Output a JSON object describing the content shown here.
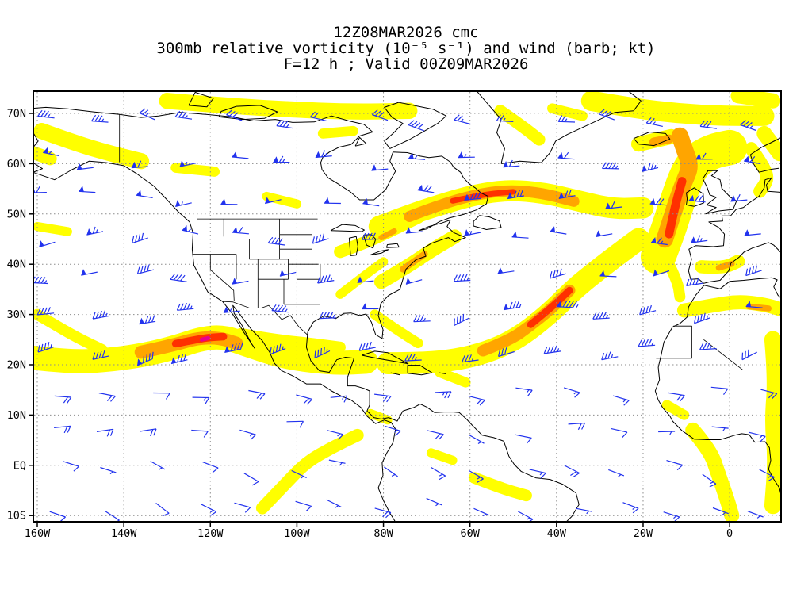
{
  "header": {
    "line1": "12Z08MAR2026 cmc",
    "line2": "300mb relative vorticity (10⁻⁵ s⁻¹) and wind (barb; kt)",
    "line3": "F=12 h ; Valid 00Z09MAR2026"
  },
  "chart_data": {
    "type": "heatmap",
    "title": "300mb relative vorticity (10⁻⁵ s⁻¹) and wind (barb; kt)",
    "model": "cmc",
    "init_time": "12Z08MAR2026",
    "forecast": "F=12 h",
    "valid_time": "00Z09MAR2026",
    "level": "300mb",
    "variable": "relative vorticity",
    "vorticity_units": "10⁻⁵ s⁻¹",
    "wind_units": "kt",
    "x_axis": {
      "labels": [
        "160W",
        "140W",
        "120W",
        "100W",
        "80W",
        "60W",
        "40W",
        "20W",
        "0"
      ],
      "degrees": [
        -160,
        -140,
        -120,
        -100,
        -80,
        -60,
        -40,
        -20,
        0
      ]
    },
    "y_axis": {
      "labels": [
        "70N",
        "60N",
        "50N",
        "40N",
        "30N",
        "20N",
        "10N",
        "EQ",
        "10S"
      ],
      "degrees": [
        70,
        60,
        50,
        40,
        30,
        20,
        10,
        0,
        -10
      ]
    },
    "domain": {
      "lon_min": -161,
      "lon_max": 12,
      "lat_min": -11.2,
      "lat_max": 74.5
    },
    "graticule": "dotted, 10 deg latitude x 20 deg longitude",
    "colors": {
      "shading": [
        "#FFFF00",
        "#FFA500",
        "#FF3000",
        "#E8008C"
      ],
      "barb": "#2233EE",
      "coast": "#000000",
      "grid": "#8C8C8C",
      "frame": "#000000"
    },
    "vorticity_features": [
      {
        "level": 1,
        "w": 4.8,
        "pts": [
          [
            -162,
            21.5
          ],
          [
            -152,
            20.5
          ],
          [
            -143,
            21
          ],
          [
            -135,
            22
          ],
          [
            -128,
            23.5
          ],
          [
            -122,
            25.2
          ],
          [
            -117,
            25.6
          ],
          [
            -111,
            23.8
          ],
          [
            -104,
            21.8
          ],
          [
            -97,
            20.8
          ],
          [
            -90,
            20.3
          ],
          [
            -84,
            20.6
          ]
        ]
      },
      {
        "level": 1,
        "w": 2.2,
        "pts": [
          [
            -160,
            30
          ],
          [
            -156,
            28
          ],
          [
            -151,
            25.5
          ],
          [
            -145,
            23
          ]
        ]
      },
      {
        "level": 1,
        "w": 2.2,
        "pts": [
          [
            -113,
            26.2
          ],
          [
            -105,
            25
          ],
          [
            -97,
            24.3
          ],
          [
            -90,
            23.5
          ]
        ]
      },
      {
        "level": 1,
        "w": 4.4,
        "pts": [
          [
            -79,
            20.3
          ],
          [
            -71,
            20.3
          ],
          [
            -63,
            21
          ],
          [
            -56,
            22.5
          ],
          [
            -50,
            24.8
          ],
          [
            -45,
            27.8
          ],
          [
            -40,
            31.5
          ],
          [
            -36,
            35
          ],
          [
            -31,
            38.5
          ],
          [
            -26,
            41.8
          ],
          [
            -21,
            45
          ]
        ]
      },
      {
        "level": 1,
        "w": 2.0,
        "pts": [
          [
            -82,
            30
          ],
          [
            -77,
            27
          ],
          [
            -72,
            24.3
          ]
        ]
      },
      {
        "level": 1,
        "w": 4.2,
        "pts": [
          [
            -81,
            47.5
          ],
          [
            -74,
            49.8
          ],
          [
            -67,
            51.8
          ],
          [
            -59,
            53.8
          ],
          [
            -51,
            54.8
          ],
          [
            -43,
            54.2
          ],
          [
            -35,
            52.6
          ],
          [
            -27,
            51
          ],
          [
            -20,
            51.2
          ]
        ]
      },
      {
        "level": 1,
        "w": 7.0,
        "pts": [
          [
            -16.5,
            41.5
          ],
          [
            -14.5,
            46
          ],
          [
            -13,
            50
          ],
          [
            -11.5,
            54
          ],
          [
            -10,
            57.5
          ],
          [
            -8,
            60.5
          ],
          [
            -4,
            62.5
          ],
          [
            0,
            63.2
          ]
        ]
      },
      {
        "level": 1,
        "w": 2.8,
        "pts": [
          [
            -80.5,
            36.5
          ],
          [
            -74.5,
            39.5
          ],
          [
            -68.5,
            43
          ],
          [
            -63.5,
            45.5
          ]
        ]
      },
      {
        "level": 1,
        "w": 2.5,
        "pts": [
          [
            -90,
            42.5
          ],
          [
            -83.5,
            44.5
          ],
          [
            -77.5,
            47
          ],
          [
            -72,
            49.3
          ]
        ]
      },
      {
        "level": 1,
        "w": 3.2,
        "pts": [
          [
            -130,
            72.5
          ],
          [
            -116,
            71.5
          ],
          [
            -102,
            70.8
          ],
          [
            -88,
            70.3
          ],
          [
            -74,
            70.5
          ]
        ]
      },
      {
        "level": 1,
        "w": 3.2,
        "pts": [
          [
            -159,
            66.5
          ],
          [
            -151,
            64
          ],
          [
            -143,
            62
          ],
          [
            -136,
            60.5
          ]
        ]
      },
      {
        "level": 1,
        "w": 2.6,
        "pts": [
          [
            -162,
            62.5
          ],
          [
            -157,
            61
          ]
        ]
      },
      {
        "level": 1,
        "w": 2.0,
        "pts": [
          [
            -128,
            59.2
          ],
          [
            -119,
            58.4
          ]
        ]
      },
      {
        "level": 1,
        "w": 1.8,
        "pts": [
          [
            -107,
            53.5
          ],
          [
            -100,
            52
          ]
        ]
      },
      {
        "level": 1,
        "w": 2.4,
        "pts": [
          [
            -53,
            70.5
          ],
          [
            -48,
            67.5
          ],
          [
            -44,
            64.8
          ]
        ]
      },
      {
        "level": 1,
        "w": 4.0,
        "pts": [
          [
            -32,
            72.5
          ],
          [
            -22,
            71
          ],
          [
            -12,
            70
          ],
          [
            -2,
            69.5
          ],
          [
            8,
            69.5
          ]
        ]
      },
      {
        "level": 1,
        "w": 3.0,
        "pts": [
          [
            2,
            73.5
          ],
          [
            10,
            72.5
          ]
        ]
      },
      {
        "level": 1,
        "w": 3.0,
        "pts": [
          [
            -21,
            63.9
          ],
          [
            -13.5,
            65.4
          ]
        ]
      },
      {
        "level": 1,
        "w": 2.6,
        "pts": [
          [
            5,
            63
          ],
          [
            7.5,
            60
          ],
          [
            9,
            57
          ],
          [
            7,
            54.5
          ]
        ]
      },
      {
        "level": 1,
        "w": 2.6,
        "pts": [
          [
            -6.5,
            39.5
          ],
          [
            -1.5,
            39.2
          ],
          [
            2,
            40.6
          ]
        ]
      },
      {
        "level": 1,
        "w": 2.8,
        "pts": [
          [
            -10.5,
            30.8
          ],
          [
            -4,
            31.8
          ],
          [
            2,
            32.6
          ],
          [
            8,
            32
          ],
          [
            12,
            31
          ]
        ]
      },
      {
        "level": 1,
        "w": 3.4,
        "pts": [
          [
            10,
            25
          ],
          [
            10.8,
            17
          ],
          [
            10,
            9
          ],
          [
            10.8,
            1
          ],
          [
            10,
            -8
          ]
        ]
      },
      {
        "level": 1,
        "w": 3.0,
        "pts": [
          [
            -8.5,
            7
          ],
          [
            -4.5,
            3
          ],
          [
            -2.5,
            -2
          ],
          [
            -0.5,
            -7
          ],
          [
            0.5,
            -10
          ]
        ]
      },
      {
        "level": 1,
        "w": 2.0,
        "pts": [
          [
            -14.5,
            12
          ],
          [
            -10.5,
            10
          ]
        ]
      },
      {
        "level": 1,
        "w": 2.5,
        "pts": [
          [
            -108,
            -8.5
          ],
          [
            -103,
            -4
          ],
          [
            -98,
            0.5
          ],
          [
            -92,
            3.5
          ],
          [
            -86,
            6
          ]
        ]
      },
      {
        "level": 1,
        "w": 1.8,
        "pts": [
          [
            -69,
            2.5
          ],
          [
            -64,
            1
          ]
        ]
      },
      {
        "level": 1,
        "w": 2.3,
        "pts": [
          [
            -59,
            -2.5
          ],
          [
            -53,
            -4.5
          ],
          [
            -47,
            -6
          ]
        ]
      },
      {
        "level": 1,
        "w": 2.0,
        "pts": [
          [
            -67,
            18.5
          ],
          [
            -61,
            16.5
          ]
        ]
      },
      {
        "level": 1,
        "w": 1.8,
        "pts": [
          [
            -83,
            10.3
          ],
          [
            -79,
            9
          ]
        ]
      },
      {
        "level": 1,
        "w": 2.0,
        "pts": [
          [
            -41,
            71
          ],
          [
            -34,
            69.5
          ]
        ]
      },
      {
        "level": 1,
        "w": 2.0,
        "pts": [
          [
            -94,
            66
          ],
          [
            -87,
            66.5
          ]
        ]
      },
      {
        "level": 1,
        "w": 3.0,
        "pts": [
          [
            8,
            66
          ],
          [
            11.5,
            62
          ]
        ]
      },
      {
        "level": 1,
        "w": 1.8,
        "pts": [
          [
            -160,
            47.5
          ],
          [
            -153,
            46.5
          ]
        ]
      },
      {
        "level": 1,
        "w": 1.8,
        "pts": [
          [
            -90,
            34
          ],
          [
            -84,
            38
          ],
          [
            -80,
            40.5
          ]
        ]
      },
      {
        "level": 1,
        "w": 2.2,
        "pts": [
          [
            -14,
            40
          ],
          [
            -12,
            36.5
          ],
          [
            -11.5,
            33.5
          ]
        ]
      },
      {
        "level": 2,
        "w": 2.6,
        "pts": [
          [
            -136,
            22.5
          ],
          [
            -129,
            23.8
          ],
          [
            -123,
            25.3
          ],
          [
            -118,
            25.4
          ],
          [
            -114,
            24.3
          ]
        ]
      },
      {
        "level": 2,
        "w": 2.3,
        "pts": [
          [
            -57,
            22.8
          ],
          [
            -51,
            24.8
          ],
          [
            -46,
            27.8
          ],
          [
            -41,
            31.3
          ],
          [
            -37,
            34.8
          ]
        ]
      },
      {
        "level": 2,
        "w": 2.2,
        "pts": [
          [
            -74,
            49.5
          ],
          [
            -67,
            51.8
          ],
          [
            -59,
            53.8
          ],
          [
            -51,
            54.8
          ],
          [
            -43,
            54.1
          ],
          [
            -36,
            52.5
          ]
        ]
      },
      {
        "level": 2,
        "w": 3.4,
        "pts": [
          [
            -15,
            45
          ],
          [
            -13.5,
            49
          ],
          [
            -12,
            53
          ],
          [
            -10.5,
            56.5
          ],
          [
            -9,
            59.5
          ],
          [
            -10.5,
            63
          ],
          [
            -11.5,
            65.5
          ]
        ]
      },
      {
        "level": 2,
        "w": 1.8,
        "pts": [
          [
            -17.5,
            64.3
          ],
          [
            -14,
            64.9
          ]
        ]
      },
      {
        "level": 2,
        "w": 1.3,
        "pts": [
          [
            -75.5,
            39
          ],
          [
            -70.5,
            42
          ]
        ]
      },
      {
        "level": 2,
        "w": 1.1,
        "pts": [
          [
            -80.5,
            45.3
          ],
          [
            -77.5,
            46.6
          ]
        ]
      },
      {
        "level": 2,
        "w": 1.2,
        "pts": [
          [
            -2.5,
            39.3
          ],
          [
            0.5,
            40.1
          ]
        ]
      },
      {
        "level": 2,
        "w": 1.2,
        "pts": [
          [
            4.5,
            31.6
          ],
          [
            9,
            31.2
          ]
        ]
      },
      {
        "level": 3,
        "w": 1.5,
        "pts": [
          [
            -128,
            24.2
          ],
          [
            -122,
            25.3
          ],
          [
            -117,
            25.6
          ]
        ]
      },
      {
        "level": 3,
        "w": 1.4,
        "pts": [
          [
            -46,
            28
          ],
          [
            -41,
            31.5
          ],
          [
            -37,
            34.8
          ]
        ]
      },
      {
        "level": 3,
        "w": 1.1,
        "pts": [
          [
            -64,
            52.6
          ],
          [
            -57,
            53.9
          ],
          [
            -50,
            54.4
          ]
        ]
      },
      {
        "level": 3,
        "w": 1.7,
        "pts": [
          [
            -14,
            46
          ],
          [
            -13,
            50
          ],
          [
            -12,
            53.5
          ],
          [
            -11,
            56.5
          ]
        ]
      },
      {
        "level": 4,
        "w": 0.8,
        "pts": [
          [
            -122,
            25
          ],
          [
            -120.5,
            25.3
          ]
        ]
      }
    ],
    "wind": {
      "barb_convention": "staff points upwind; pennant=50kt, full barb=10kt, half barb=5kt",
      "grid": {
        "lon_start": -156,
        "lon_end": 8,
        "lon_step": 10.8,
        "lat_start": -8,
        "lat_end": 71,
        "lat_step": 7.6
      },
      "zones": [
        {
          "lat_min": -12,
          "lat_max": 6,
          "dir": 115,
          "spd": 10
        },
        {
          "lat_min": 6,
          "lat_max": 16,
          "dir": 95,
          "spd": 15
        },
        {
          "lat_min": 16,
          "lat_max": 30,
          "dir": 255,
          "spd": 40
        },
        {
          "lat_min": 30,
          "lat_max": 46,
          "dir": 265,
          "spd": 45
        },
        {
          "lat_min": 46,
          "lat_max": 63,
          "dir": 270,
          "spd": 55
        },
        {
          "lat_min": 63,
          "lat_max": 76,
          "dir": 285,
          "spd": 30
        }
      ],
      "jets": [
        {
          "lon_min": -140,
          "lon_max": -106,
          "lat_min": 19,
          "lat_max": 29,
          "spd": 85
        },
        {
          "lon_min": -58,
          "lon_max": -32,
          "lat_min": 24,
          "lat_max": 38,
          "spd": 90
        },
        {
          "lon_min": -70,
          "lon_max": -34,
          "lat_min": 49,
          "lat_max": 58,
          "spd": 75
        },
        {
          "lon_min": -20,
          "lon_max": -4,
          "lat_min": 42,
          "lat_max": 60,
          "spd": 70
        }
      ]
    }
  }
}
